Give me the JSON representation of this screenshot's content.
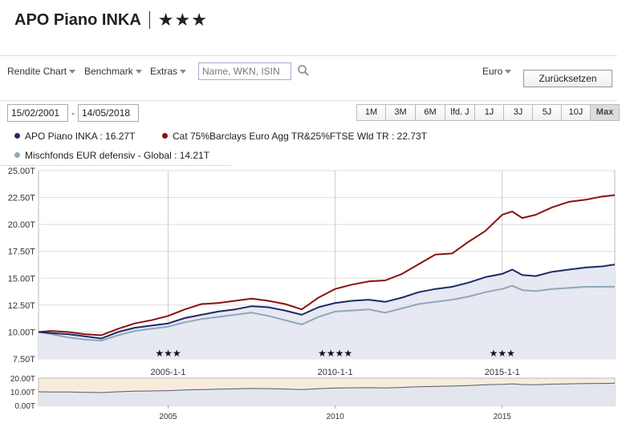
{
  "header": {
    "fund_name": "APO Piano INKA",
    "rating": "★★★"
  },
  "toolbar": {
    "menus": [
      "Rendite Chart",
      "Benchmark",
      "Extras"
    ],
    "search_placeholder": "Name, WKN, ISIN",
    "currency": "Euro",
    "reset_label": "Zurücksetzen"
  },
  "date_range": {
    "from": "15/02/2001",
    "separator": "-",
    "to": "14/05/2018"
  },
  "ranges": {
    "buttons": [
      "1M",
      "3M",
      "6M",
      "lfd. J",
      "1J",
      "3J",
      "5J",
      "10J",
      "Max"
    ],
    "active": "Max"
  },
  "colors": {
    "fund": "#1f2a66",
    "benchmark": "#8a1010",
    "category": "#8fa8b8",
    "area_fill": "#e6e8f2",
    "plot_border": "#bbbbbb",
    "navigator_bg": "#f7ecdc"
  },
  "legend": [
    {
      "text": "APO Piano INKA : 16.27T",
      "color": "#1f2a66"
    },
    {
      "text": "Cat 75%Barclays Euro Agg TR&25%FTSE Wld TR : 22.73T",
      "color": "#8a1010"
    },
    {
      "text": "Mischfonds EUR defensiv - Global : 14.21T",
      "color": "#8fa8b8"
    }
  ],
  "chart_data": {
    "type": "line",
    "y_unit_suffix": "T",
    "ylim": [
      7.5,
      25
    ],
    "yticks": [
      "25.00T",
      "22.50T",
      "20.00T",
      "17.50T",
      "15.00T",
      "12.50T",
      "10.00T",
      "7.50T"
    ],
    "xlim": [
      2001.12,
      2018.37
    ],
    "xticks": [
      {
        "x": 2005.0,
        "label": "2005-1-1"
      },
      {
        "x": 2010.0,
        "label": "2010-1-1"
      },
      {
        "x": 2015.0,
        "label": "2015-1-1"
      }
    ],
    "grid": true,
    "rating_markers": [
      {
        "x": 2005.0,
        "text": "★★★"
      },
      {
        "x": 2010.0,
        "text": "★★★★"
      },
      {
        "x": 2015.0,
        "text": "★★★"
      }
    ],
    "series": [
      {
        "name": "APO Piano INKA",
        "x": [
          2001.12,
          2001.5,
          2002.0,
          2002.5,
          2003.0,
          2003.5,
          2004.0,
          2004.5,
          2005.0,
          2005.5,
          2006.0,
          2006.5,
          2007.0,
          2007.5,
          2008.0,
          2008.5,
          2009.0,
          2009.5,
          2010.0,
          2010.5,
          2011.0,
          2011.5,
          2012.0,
          2012.5,
          2013.0,
          2013.5,
          2014.0,
          2014.5,
          2015.0,
          2015.3,
          2015.6,
          2016.0,
          2016.5,
          2017.0,
          2017.5,
          2018.0,
          2018.37
        ],
        "values": [
          10.0,
          9.9,
          9.8,
          9.6,
          9.4,
          10.0,
          10.4,
          10.6,
          10.8,
          11.3,
          11.6,
          11.9,
          12.1,
          12.4,
          12.3,
          12.0,
          11.6,
          12.3,
          12.7,
          12.9,
          13.0,
          12.8,
          13.2,
          13.7,
          14.0,
          14.2,
          14.6,
          15.1,
          15.4,
          15.8,
          15.3,
          15.2,
          15.6,
          15.8,
          16.0,
          16.1,
          16.27
        ]
      },
      {
        "name": "Cat 75%Barclays Euro Agg TR&25%FTSE Wld TR",
        "x": [
          2001.12,
          2001.5,
          2002.0,
          2002.5,
          2003.0,
          2003.5,
          2004.0,
          2004.5,
          2005.0,
          2005.5,
          2006.0,
          2006.5,
          2007.0,
          2007.5,
          2008.0,
          2008.5,
          2009.0,
          2009.5,
          2010.0,
          2010.5,
          2011.0,
          2011.5,
          2012.0,
          2012.5,
          2013.0,
          2013.5,
          2014.0,
          2014.5,
          2015.0,
          2015.3,
          2015.6,
          2016.0,
          2016.5,
          2017.0,
          2017.5,
          2018.0,
          2018.37
        ],
        "values": [
          10.0,
          10.1,
          10.0,
          9.8,
          9.7,
          10.3,
          10.8,
          11.1,
          11.5,
          12.1,
          12.6,
          12.7,
          12.9,
          13.1,
          12.9,
          12.6,
          12.1,
          13.2,
          14.0,
          14.4,
          14.7,
          14.8,
          15.4,
          16.3,
          17.2,
          17.3,
          18.4,
          19.4,
          20.9,
          21.2,
          20.6,
          20.9,
          21.6,
          22.1,
          22.3,
          22.6,
          22.73
        ]
      },
      {
        "name": "Mischfonds EUR defensiv - Global",
        "x": [
          2001.12,
          2001.5,
          2002.0,
          2002.5,
          2003.0,
          2003.5,
          2004.0,
          2004.5,
          2005.0,
          2005.5,
          2006.0,
          2006.5,
          2007.0,
          2007.5,
          2008.0,
          2008.5,
          2009.0,
          2009.5,
          2010.0,
          2010.5,
          2011.0,
          2011.5,
          2012.0,
          2012.5,
          2013.0,
          2013.5,
          2014.0,
          2014.5,
          2015.0,
          2015.3,
          2015.6,
          2016.0,
          2016.5,
          2017.0,
          2017.5,
          2018.0,
          2018.37
        ],
        "values": [
          10.0,
          9.8,
          9.5,
          9.3,
          9.2,
          9.7,
          10.1,
          10.3,
          10.5,
          10.9,
          11.2,
          11.4,
          11.6,
          11.8,
          11.5,
          11.1,
          10.7,
          11.4,
          11.9,
          12.0,
          12.1,
          11.8,
          12.2,
          12.6,
          12.8,
          13.0,
          13.3,
          13.7,
          14.0,
          14.3,
          13.9,
          13.8,
          14.0,
          14.1,
          14.2,
          14.2,
          14.21
        ]
      }
    ],
    "navigator": {
      "yticks": [
        "20.00T",
        "10.00T",
        "0.00T"
      ],
      "ylim": [
        0,
        20
      ],
      "xticks": [
        {
          "x": 2005.0,
          "label": "2005"
        },
        {
          "x": 2010.0,
          "label": "2010"
        },
        {
          "x": 2015.0,
          "label": "2015"
        }
      ]
    }
  }
}
